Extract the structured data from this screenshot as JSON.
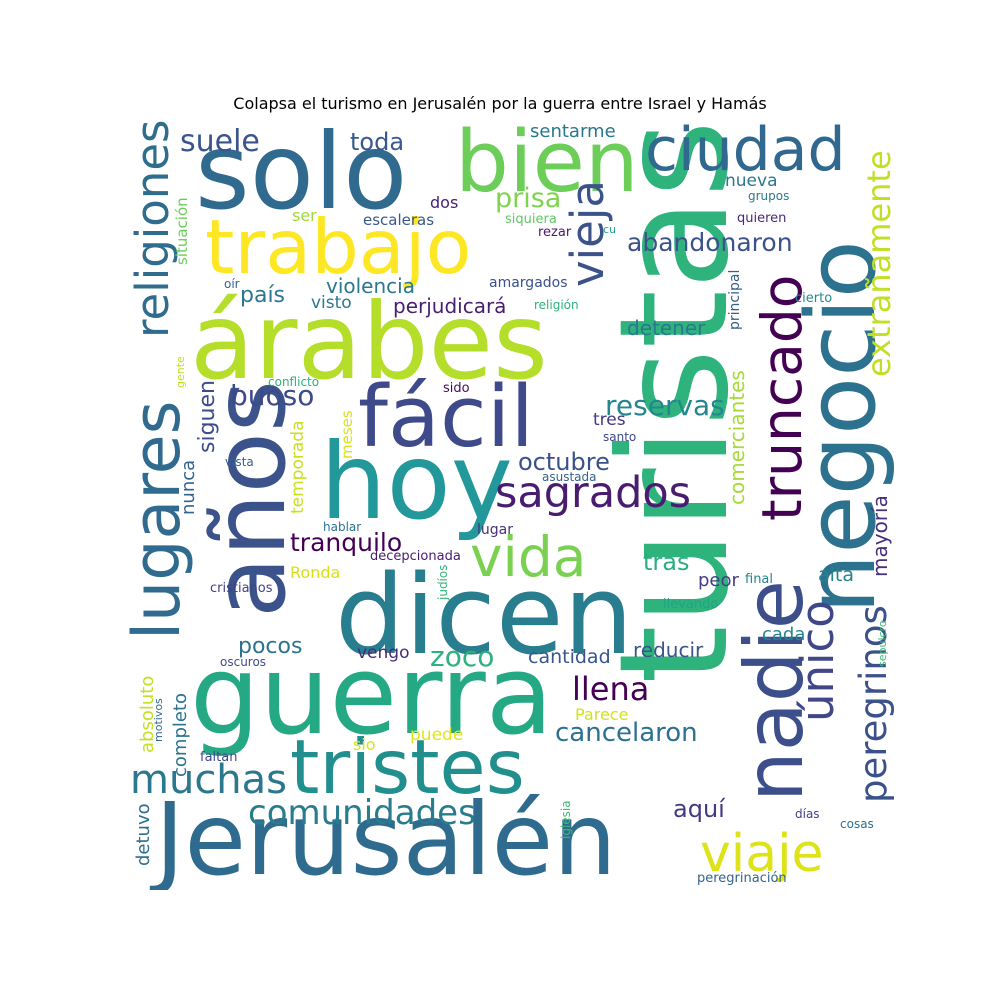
{
  "title": "Colapsa el turismo en Jerusalén por la guerra entre Israel y Hamás",
  "words": [
    {
      "t": "turistas",
      "c": "#2fb37d"
    },
    {
      "t": "Jerusalén",
      "c": "#2e6b8e"
    },
    {
      "t": "dicen",
      "c": "#287d8e"
    },
    {
      "t": "guerra",
      "c": "#24a984"
    },
    {
      "t": "solo",
      "c": "#306a8e"
    },
    {
      "t": "hoy",
      "c": "#23989b"
    },
    {
      "t": "árabes",
      "c": "#b5de2b"
    },
    {
      "t": "años",
      "c": "#3b528b"
    },
    {
      "t": "tristes",
      "c": "#218f8d"
    },
    {
      "t": "negocio",
      "c": "#2c728e"
    },
    {
      "t": "bien",
      "c": "#6cce59"
    },
    {
      "t": "fácil",
      "c": "#3e4a89"
    },
    {
      "t": "trabajo",
      "c": "#fde725"
    },
    {
      "t": "nadie",
      "c": "#3c4f8a"
    },
    {
      "t": "lugares",
      "c": "#306a8e"
    },
    {
      "t": "ciudad",
      "c": "#31688e"
    },
    {
      "t": "vida",
      "c": "#7ad151"
    },
    {
      "t": "truncado",
      "c": "#440154"
    },
    {
      "t": "religiones",
      "c": "#2f6c8e"
    },
    {
      "t": "sagrados",
      "c": "#481d6f"
    },
    {
      "t": "único",
      "c": "#3f4788"
    },
    {
      "t": "viaje",
      "c": "#dde318"
    },
    {
      "t": "vieja",
      "c": "#3b528b"
    },
    {
      "t": "muchas",
      "c": "#2a778e"
    },
    {
      "t": "peregrinos",
      "c": "#3b518b"
    },
    {
      "t": "extrañamente",
      "c": "#c2df23"
    },
    {
      "t": "comunidades",
      "c": "#287c8e"
    },
    {
      "t": "llena",
      "c": "#440154"
    },
    {
      "t": "suele",
      "c": "#39558c"
    },
    {
      "t": "reservas",
      "c": "#24878e"
    },
    {
      "t": "zoco",
      "c": "#2db27d"
    },
    {
      "t": "buoso",
      "c": "#3e4989"
    },
    {
      "t": "abandonaron",
      "c": "#3b528b"
    },
    {
      "t": "cancelaron",
      "c": "#2c728e"
    },
    {
      "t": "octubre",
      "c": "#3b518b"
    },
    {
      "t": "tranquilo",
      "c": "#440154"
    },
    {
      "t": "prisa",
      "c": "#7fd34e"
    },
    {
      "t": "comerciantes",
      "c": "#a5db36"
    },
    {
      "t": "mayoría",
      "c": "#472f7d"
    },
    {
      "t": "tras",
      "c": "#29af7f"
    },
    {
      "t": "aquí",
      "c": "#443983"
    },
    {
      "t": "toda",
      "c": "#38598c"
    },
    {
      "t": "siguen",
      "c": "#3d4d8a"
    },
    {
      "t": "país",
      "c": "#2a788e"
    },
    {
      "t": "pocos",
      "c": "#2c738e"
    },
    {
      "t": "perjudicará",
      "c": "#481f70"
    },
    {
      "t": "violencia",
      "c": "#2a788e"
    },
    {
      "t": "detener",
      "c": "#2a788e"
    },
    {
      "t": "sentarme",
      "c": "#2a778e"
    },
    {
      "t": "cantidad",
      "c": "#39568c"
    },
    {
      "t": "reducir",
      "c": "#39568c"
    },
    {
      "t": "alta",
      "c": "#26828e"
    },
    {
      "t": "cada",
      "c": "#25848e"
    },
    {
      "t": "peor",
      "c": "#433d84"
    },
    {
      "t": "visto",
      "c": "#2a788e"
    },
    {
      "t": "nueva",
      "c": "#2a778e"
    },
    {
      "t": "temporada",
      "c": "#c8e020"
    },
    {
      "t": "meses",
      "c": "#d8e219"
    },
    {
      "t": "tres",
      "c": "#453781"
    },
    {
      "t": "vengo",
      "c": "#482979"
    },
    {
      "t": "Ronda",
      "c": "#d5e21a"
    },
    {
      "t": "Parece",
      "c": "#d2e21b"
    },
    {
      "t": "puede",
      "c": "#e2e418"
    },
    {
      "t": "sio",
      "c": "#dae319"
    },
    {
      "t": "dos",
      "c": "#482071"
    },
    {
      "t": "completo",
      "c": "#2b748e"
    },
    {
      "t": "absoluto",
      "c": "#c5e021"
    },
    {
      "t": "nunca",
      "c": "#32658e"
    },
    {
      "t": "detuvo",
      "c": "#2e6e8e"
    },
    {
      "t": "situación",
      "c": "#6ccd5a"
    },
    {
      "t": "principal",
      "c": "#355f8d"
    },
    {
      "t": "ser",
      "c": "#9fda3a"
    },
    {
      "t": "escaleras",
      "c": "#38588c"
    },
    {
      "t": "siquiera",
      "c": "#5ec962"
    },
    {
      "t": "rezar",
      "c": "#48186a"
    },
    {
      "t": "amargados",
      "c": "#3b518b"
    },
    {
      "t": "sido",
      "c": "#460b5e"
    },
    {
      "t": "conflicto",
      "c": "#2db27d"
    },
    {
      "t": "santo",
      "c": "#3f4788"
    },
    {
      "t": "asustada",
      "c": "#33638d"
    },
    {
      "t": "hablar",
      "c": "#2c718e"
    },
    {
      "t": "decepcionada",
      "c": "#481b6d"
    },
    {
      "t": "lugar",
      "c": "#472f7d"
    },
    {
      "t": "vista",
      "c": "#34618d"
    },
    {
      "t": "cristianos",
      "c": "#424086"
    },
    {
      "t": "oscuros",
      "c": "#3e4c8a"
    },
    {
      "t": "motivos",
      "c": "#31688e"
    },
    {
      "t": "faltan",
      "c": "#3e4989"
    },
    {
      "t": "judíos",
      "c": "#34b679"
    },
    {
      "t": "iglesia",
      "c": "#3dbc74"
    },
    {
      "t": "llevando",
      "c": "#20a386"
    },
    {
      "t": "final",
      "c": "#26828e"
    },
    {
      "t": "días",
      "c": "#424186"
    },
    {
      "t": "cosas",
      "c": "#2e6f8e"
    },
    {
      "t": "sepulcro",
      "c": "#3dbc74"
    },
    {
      "t": "peregrinación",
      "c": "#32648e"
    },
    {
      "t": "cierto",
      "c": "#23898e"
    },
    {
      "t": "quieren",
      "c": "#482878"
    },
    {
      "t": "grupos",
      "c": "#2a788e"
    },
    {
      "t": "cu",
      "c": "#1fa187"
    },
    {
      "t": "religión",
      "c": "#2db27d"
    },
    {
      "t": "oír",
      "c": "#33638d"
    },
    {
      "t": "gente",
      "c": "#bddf26"
    }
  ]
}
